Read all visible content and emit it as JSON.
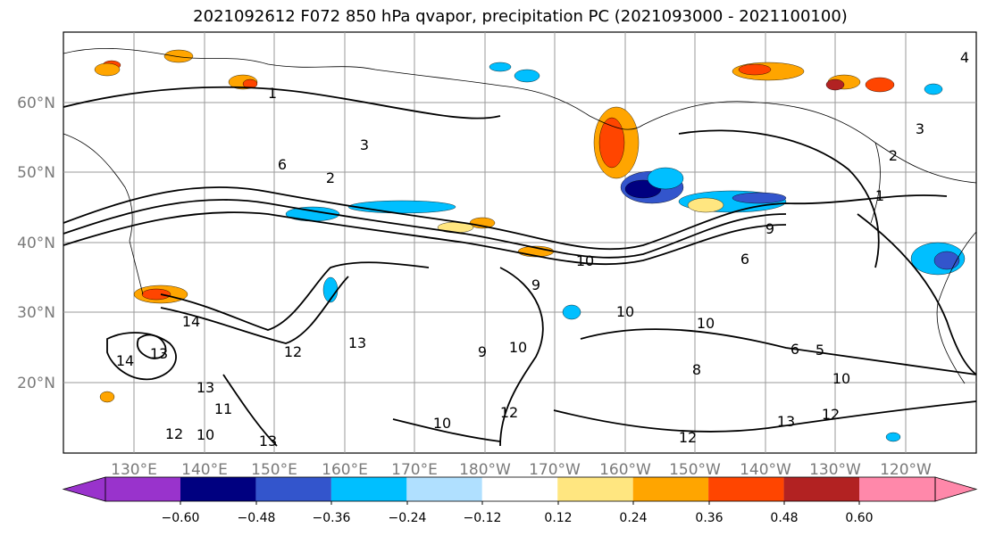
{
  "title": "2021092612 F072 850 hPa qvapor, precipitation PC (2021093000 - 2021100100)",
  "lon_labels": [
    "130°E",
    "140°E",
    "150°E",
    "160°E",
    "170°E",
    "180°W",
    "170°W",
    "160°W",
    "150°W",
    "140°W",
    "130°W",
    "120°W"
  ],
  "lat_labels": [
    "20°N",
    "30°N",
    "40°N",
    "50°N",
    "60°N"
  ],
  "contour_labels": [
    "1",
    "2",
    "3",
    "4",
    "5",
    "6",
    "8",
    "9",
    "10",
    "11",
    "12",
    "13",
    "14"
  ],
  "colorbar": {
    "colors": [
      "#9933cc",
      "#000080",
      "#3355cc",
      "#00bfff",
      "#b0e0ff",
      "#ffffff",
      "#ffe680",
      "#ffa500",
      "#ff4500",
      "#b22222",
      "#ff88aa"
    ],
    "tick_labels": [
      "−0.60",
      "−0.48",
      "−0.36",
      "−0.24",
      "−0.12",
      "0.12",
      "0.24",
      "0.36",
      "0.48",
      "0.60"
    ]
  }
}
